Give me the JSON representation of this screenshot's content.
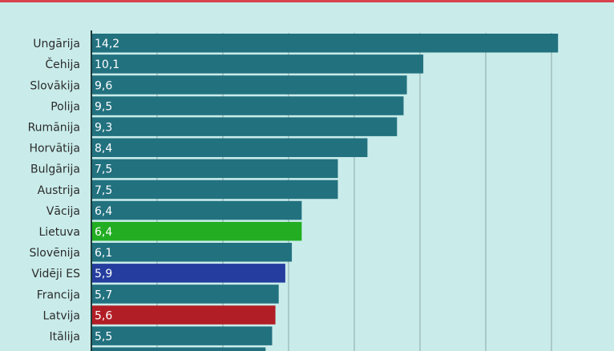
{
  "colors": {
    "background": "#c9ecea",
    "top_bar": "#d9434d",
    "bar_default": "#22717f",
    "highlight_lietuva": "#22ad22",
    "highlight_eu": "#243d9e",
    "highlight_latvia": "#b21e26",
    "gridline": "#8aa6a4",
    "axis": "#1e3a3a"
  },
  "chart_data": {
    "type": "bar",
    "orientation": "horizontal",
    "categories": [
      "Ungārija",
      "Čehija",
      "Slovākija",
      "Polija",
      "Rumānija",
      "Horvātija",
      "Bulgārija",
      "Austrija",
      "Vācija",
      "Lietuva",
      "Slovēnija",
      "Vidēji ES",
      "Francija",
      "Latvija",
      "Itālija",
      ""
    ],
    "values": [
      14.2,
      10.1,
      9.6,
      9.5,
      9.3,
      8.4,
      7.5,
      7.5,
      6.4,
      6.4,
      6.1,
      5.9,
      5.7,
      5.6,
      5.5,
      5.3
    ],
    "value_labels": [
      "14,2",
      "10,1",
      "9,6",
      "9,5",
      "9,3",
      "8,4",
      "7,5",
      "7,5",
      "6,4",
      "6,4",
      "6,1",
      "5,9",
      "5,7",
      "5,6",
      "5,5",
      ""
    ],
    "highlights": {
      "Lietuva": "#22ad22",
      "Vidēji ES": "#243d9e",
      "Latvija": "#b21e26"
    },
    "xlim": [
      0,
      16
    ],
    "grid": true
  }
}
